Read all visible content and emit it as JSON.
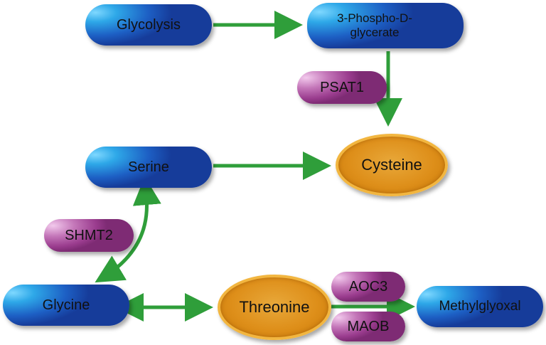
{
  "diagram": {
    "metabolites": {
      "glycolysis": "Glycolysis",
      "phosphoglycerate": "3-Phospho-D-glycerate",
      "serine": "Serine",
      "glycine": "Glycine",
      "methylglyoxal": "Methylglyoxal"
    },
    "key_metabolites": {
      "cysteine": "Cysteine",
      "threonine": "Threonine"
    },
    "enzymes": {
      "psat1": "PSAT1",
      "shmt2": "SHMT2",
      "aoc3": "AOC3",
      "maob": "MAOB"
    },
    "colors": {
      "metabolite": "#1d5fc4",
      "key_metabolite": "#de8f1a",
      "enzyme": "#9a3c8e",
      "arrow": "#2f9e3a"
    }
  }
}
